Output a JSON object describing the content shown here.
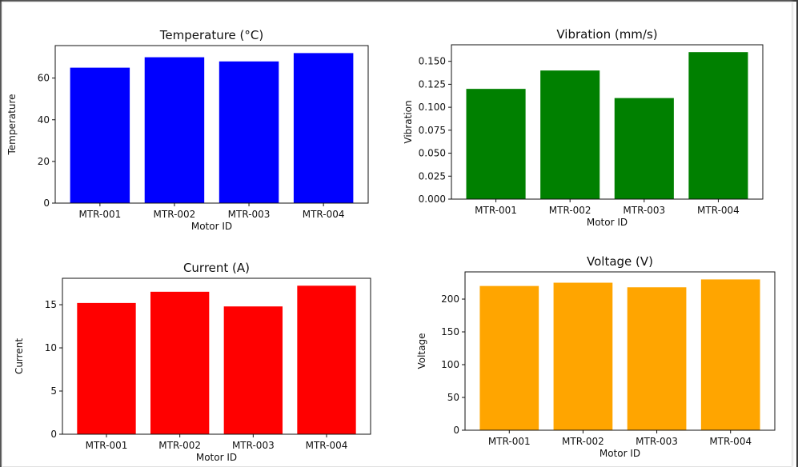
{
  "chart_data": [
    {
      "type": "bar",
      "title": "Temperature (°C)",
      "xlabel": "Motor ID",
      "ylabel": "Temperature",
      "categories": [
        "MTR-001",
        "MTR-002",
        "MTR-003",
        "MTR-004"
      ],
      "values": [
        65,
        70,
        68,
        72
      ],
      "ylim": [
        0,
        75.6
      ],
      "yticks": [
        0,
        20,
        40,
        60
      ],
      "ytick_labels": [
        "0",
        "20",
        "40",
        "60"
      ],
      "color": "#0000ff",
      "grid": false
    },
    {
      "type": "bar",
      "title": "Vibration (mm/s)",
      "xlabel": "Motor ID",
      "ylabel": "Vibration",
      "categories": [
        "MTR-001",
        "MTR-002",
        "MTR-003",
        "MTR-004"
      ],
      "values": [
        0.12,
        0.14,
        0.11,
        0.16
      ],
      "ylim": [
        0,
        0.168
      ],
      "yticks": [
        0,
        0.025,
        0.05,
        0.075,
        0.1,
        0.125,
        0.15
      ],
      "ytick_labels": [
        "0.000",
        "0.025",
        "0.050",
        "0.075",
        "0.100",
        "0.125",
        "0.150"
      ],
      "color": "#008000",
      "grid": false
    },
    {
      "type": "bar",
      "title": "Current (A)",
      "xlabel": "Motor ID",
      "ylabel": "Current",
      "categories": [
        "MTR-001",
        "MTR-002",
        "MTR-003",
        "MTR-004"
      ],
      "values": [
        15.2,
        16.5,
        14.8,
        17.2
      ],
      "ylim": [
        0,
        18.06
      ],
      "yticks": [
        0,
        5,
        10,
        15
      ],
      "ytick_labels": [
        "0",
        "5",
        "10",
        "15"
      ],
      "color": "#ff0000",
      "grid": false
    },
    {
      "type": "bar",
      "title": "Voltage (V)",
      "xlabel": "Motor ID",
      "ylabel": "Voltage",
      "categories": [
        "MTR-001",
        "MTR-002",
        "MTR-003",
        "MTR-004"
      ],
      "values": [
        220,
        225,
        218,
        230
      ],
      "ylim": [
        0,
        241.5
      ],
      "yticks": [
        0,
        50,
        100,
        150,
        200
      ],
      "ytick_labels": [
        "0",
        "50",
        "100",
        "150",
        "200"
      ],
      "color": "#ffa500",
      "grid": false
    }
  ]
}
